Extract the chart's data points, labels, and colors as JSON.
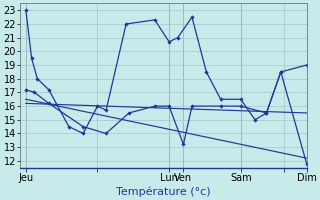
{
  "background_color": "#c8eaea",
  "grid_color": "#a0c8c8",
  "line_color": "#1a3a9a",
  "xlabel": "Température (°c)",
  "xlabel_fontsize": 8,
  "ylabel_fontsize": 7,
  "ylim": [
    11.5,
    23.5
  ],
  "yticks": [
    12,
    13,
    14,
    15,
    16,
    17,
    18,
    19,
    20,
    21,
    22,
    23
  ],
  "figsize": [
    3.2,
    2.0
  ],
  "dpi": 100,
  "xmin": 0,
  "xmax": 100,
  "xtick_positions": [
    2,
    27,
    52,
    57,
    77,
    92,
    100
  ],
  "xtick_labels": [
    "Jeu",
    "",
    "Lun",
    "Ven",
    "Sam",
    "",
    "Dim"
  ],
  "vline_positions": [
    2,
    52,
    57,
    77,
    100
  ],
  "line1_x": [
    2,
    4,
    6,
    10,
    17,
    22,
    27,
    30,
    37,
    47,
    52,
    55,
    60,
    65,
    70,
    77,
    82,
    86,
    91,
    100
  ],
  "line1_y": [
    23,
    19.5,
    18.0,
    17.2,
    14.5,
    14.0,
    16.0,
    15.7,
    22.0,
    22.3,
    20.7,
    21.0,
    22.5,
    18.5,
    16.5,
    16.5,
    15.0,
    15.5,
    18.5,
    19.0
  ],
  "line2_x": [
    2,
    5,
    10,
    22,
    30,
    38,
    47,
    52,
    57,
    60,
    70,
    77,
    86,
    91,
    100
  ],
  "line2_y": [
    17.2,
    17.0,
    16.2,
    14.5,
    14.0,
    15.5,
    16.0,
    16.0,
    13.2,
    16.0,
    16.0,
    16.0,
    15.5,
    18.5,
    11.8
  ],
  "line3_x": [
    2,
    100
  ],
  "line3_y": [
    16.5,
    12.2
  ],
  "line4_x": [
    2,
    100
  ],
  "line4_y": [
    16.2,
    15.5
  ]
}
